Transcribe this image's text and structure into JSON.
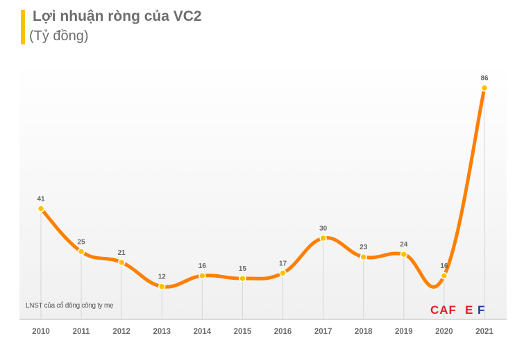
{
  "chart_data": {
    "type": "line",
    "title": "Lợi nhuận ròng của VC2",
    "subtitle": "(Tỷ đồng)",
    "categories": [
      "2010",
      "2011",
      "2012",
      "2013",
      "2014",
      "2015",
      "2016",
      "2017",
      "2018",
      "2019",
      "2020",
      "2021"
    ],
    "series": [
      {
        "name": "LNST của cổ đông công ty mẹ",
        "values": [
          41,
          25,
          21,
          12,
          16,
          15,
          17,
          30,
          23,
          24,
          16,
          86
        ]
      }
    ],
    "ylim": [
      0,
      86
    ],
    "grid": "vertical drop lines",
    "smooth": true,
    "legend": "bottom-left",
    "colors": {
      "line": "#ff7f00",
      "marker": "#ffc000",
      "accent_bar": "#fcc200",
      "text": "#6d6d6d"
    }
  },
  "watermark": "CAFEF"
}
